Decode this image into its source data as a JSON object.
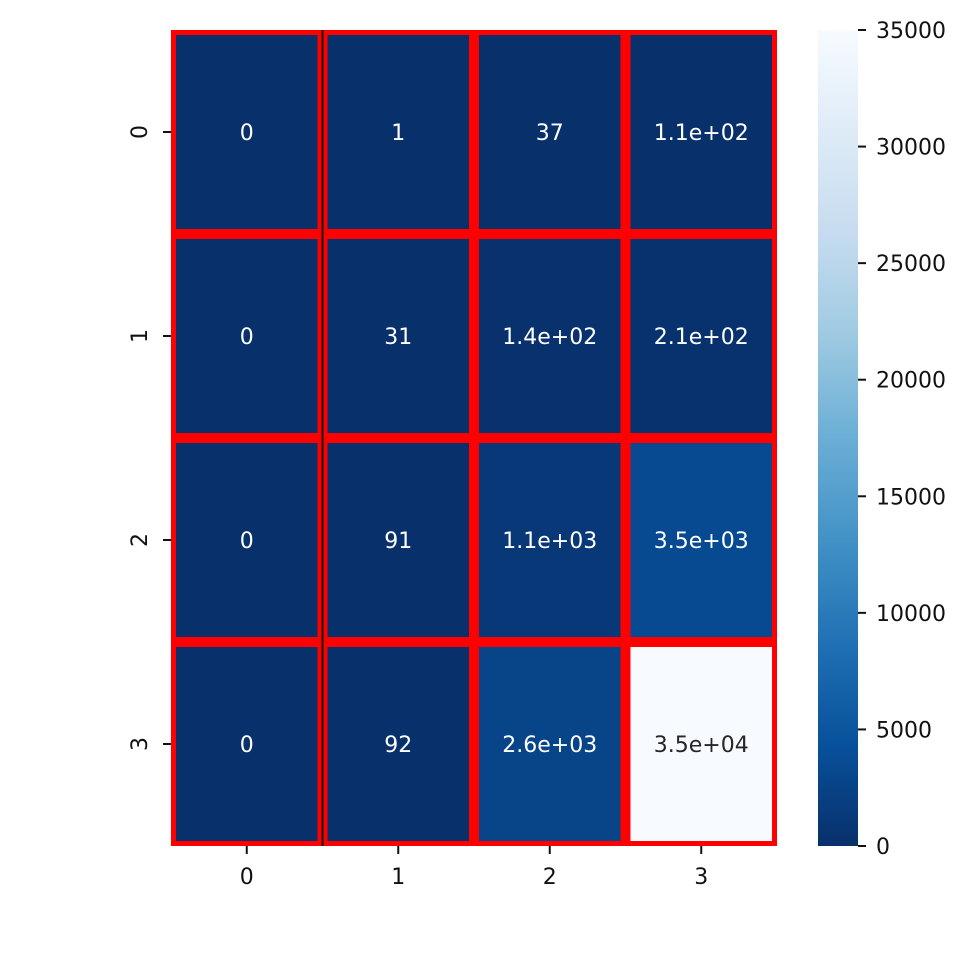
{
  "chart_data": {
    "type": "heatmap",
    "title": "",
    "xlabel": "",
    "ylabel": "",
    "x_categories": [
      "0",
      "1",
      "2",
      "3"
    ],
    "y_categories": [
      "0",
      "1",
      "2",
      "3"
    ],
    "values": [
      [
        0,
        1,
        37,
        110
      ],
      [
        0,
        31,
        140,
        210
      ],
      [
        0,
        91,
        1100,
        3500
      ],
      [
        0,
        92,
        2600,
        35000
      ]
    ],
    "annotations": [
      [
        "0",
        "1",
        "37",
        "1.1e+02"
      ],
      [
        "0",
        "31",
        "1.4e+02",
        "2.1e+02"
      ],
      [
        "0",
        "91",
        "1.1e+03",
        "3.5e+03"
      ],
      [
        "0",
        "92",
        "2.6e+03",
        "3.5e+04"
      ]
    ],
    "colormap": "Blues_r",
    "colormap_stops": [
      "#08306b",
      "#08519c",
      "#2171b5",
      "#4292c6",
      "#6baed6",
      "#9ecae1",
      "#c6dbef",
      "#deebf7",
      "#f7fbff"
    ],
    "vmin": 0,
    "vmax": 35000,
    "colorbar_ticks": [
      0,
      5000,
      10000,
      15000,
      20000,
      25000,
      30000,
      35000
    ],
    "cell_border_color": "#ff0000",
    "column_separator_color": "#111111",
    "annotation_color_dark_cells": "#ffffff",
    "annotation_color_light_cells": "#262626",
    "colorbar_position": "right",
    "grid": false
  }
}
